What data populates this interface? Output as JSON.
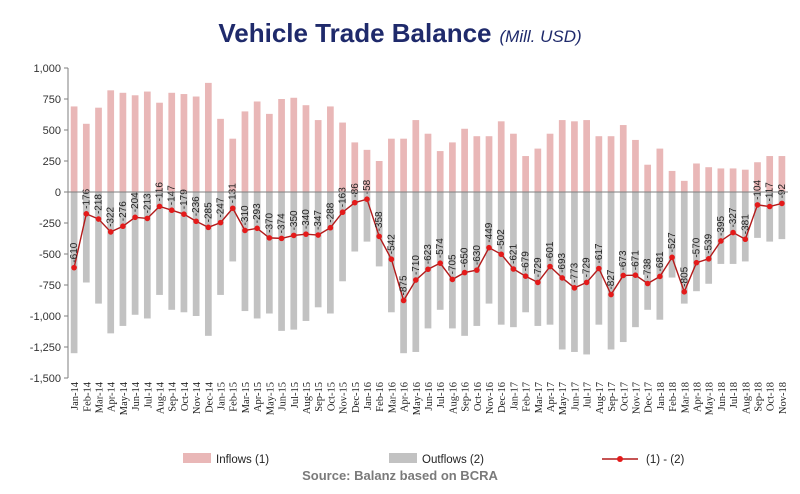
{
  "header": {
    "title": "Vehicle Trade Balance",
    "subtitle": "(Mill. USD)"
  },
  "footer": {
    "source": "Source: Balanz based on BCRA"
  },
  "colors": {
    "inflows": "#e9b7b7",
    "outflows": "#c2c2c2",
    "balance_line": "#b31b1b",
    "balance_marker": "#e41a1a",
    "title": "#1f2a6b"
  },
  "chart_data": {
    "type": "bar",
    "title": "Vehicle Trade Balance",
    "subtitle": "(Mill. USD)",
    "ylim": [
      -1500,
      1000
    ],
    "yticks": [
      1000,
      750,
      500,
      250,
      0,
      -250,
      -500,
      -750,
      -1000,
      -1250,
      -1500
    ],
    "ytick_labels": [
      "1,000",
      "750",
      "500",
      "250",
      "0",
      "-250",
      "-500",
      "-750",
      "-1,000",
      "-1,250",
      "-1,500"
    ],
    "grid": false,
    "legend_position": "bottom",
    "categories": [
      "Jan-14",
      "Feb-14",
      "Mar-14",
      "Apr-14",
      "May-14",
      "Jun-14",
      "Jul-14",
      "Aug-14",
      "Sep-14",
      "Oct-14",
      "Nov-14",
      "Dec-14",
      "Jan-15",
      "Feb-15",
      "Mar-15",
      "Apr-15",
      "May-15",
      "Jun-15",
      "Jul-15",
      "Aug-15",
      "Sep-15",
      "Oct-15",
      "Nov-15",
      "Dec-15",
      "Jan-16",
      "Feb-16",
      "Mar-16",
      "Apr-16",
      "May-16",
      "Jun-16",
      "Jul-16",
      "Aug-16",
      "Sep-16",
      "Oct-16",
      "Nov-16",
      "Dec-16",
      "Jan-17",
      "Feb-17",
      "Mar-17",
      "Apr-17",
      "May-17",
      "Jun-17",
      "Jul-17",
      "Aug-17",
      "Sep-17",
      "Oct-17",
      "Nov-17",
      "Dec-17",
      "Jan-18",
      "Feb-18",
      "Mar-18",
      "Apr-18",
      "May-18",
      "Jun-18",
      "Jul-18",
      "Aug-18",
      "Sep-18",
      "Oct-18",
      "Nov-18"
    ],
    "xtick_labels": [
      "Jan-14",
      "Feb-14",
      "Mar-14",
      "Apr-14",
      "May-14",
      "Jun-14",
      "Jul-14",
      "Aug-14",
      "Sep-14",
      "Oct-14",
      "Nov-14",
      "Dec-14",
      "Jan-15",
      "Feb-15",
      "Mar-15",
      "Apr-15",
      "May-15",
      "Jun-15",
      "Jul-15",
      "Aug-15",
      "Sep-15",
      "Oct-15",
      "Nov-15",
      "Dec-15",
      "Jan-16",
      "Feb-16",
      "Mar-16",
      "Apr-16",
      "May-16",
      "Jun-16",
      "Jul-16",
      "Aug-16",
      "Sep-16",
      "Oct-16",
      "Nov-16",
      "Dec-16",
      "Jan-17",
      "Feb-17",
      "Mar-17",
      "Apr-17",
      "May-17",
      "Jun-17",
      "Jul-17",
      "Aug-17",
      "Sep-17",
      "Oct-17",
      "Nov-17",
      "Dec-17",
      "Jan-18",
      "Feb-18",
      "Mar-18",
      "Apr-18",
      "May-18",
      "Jun-18",
      "Jul-18",
      "Aug-18",
      "Sep-18",
      "Oct-18",
      "Nov-18"
    ],
    "series": [
      {
        "name": "Inflows (1)",
        "type": "bar",
        "values": [
          690,
          550,
          680,
          820,
          800,
          780,
          810,
          720,
          800,
          790,
          770,
          880,
          590,
          430,
          650,
          730,
          630,
          750,
          760,
          700,
          580,
          690,
          560,
          400,
          340,
          250,
          430,
          430,
          580,
          470,
          330,
          400,
          510,
          450,
          450,
          570,
          470,
          290,
          350,
          470,
          580,
          570,
          580,
          450,
          450,
          540,
          420,
          220,
          350,
          170,
          90,
          230,
          200,
          190,
          190,
          180,
          240,
          290,
          290
        ]
      },
      {
        "name": "Outflows (2)",
        "type": "bar",
        "values": [
          -1300,
          -730,
          -900,
          -1140,
          -1080,
          -990,
          -1020,
          -830,
          -950,
          -970,
          -1000,
          -1160,
          -830,
          -560,
          -960,
          -1020,
          -980,
          -1120,
          -1110,
          -1040,
          -930,
          -980,
          -720,
          -480,
          -400,
          -600,
          -970,
          -1300,
          -1290,
          -1100,
          -950,
          -1100,
          -1160,
          -1080,
          -900,
          -1070,
          -1090,
          -970,
          -1080,
          -1070,
          -1270,
          -1290,
          -1310,
          -1070,
          -1270,
          -1210,
          -1090,
          -950,
          -1030,
          -690,
          -900,
          -800,
          -740,
          -580,
          -580,
          -560,
          -370,
          -400,
          -380
        ]
      },
      {
        "name": "(1) - (2)",
        "type": "line",
        "values": [
          -610,
          -176,
          -218,
          -322,
          -276,
          -204,
          -213,
          -116,
          -147,
          -179,
          -236,
          -285,
          -247,
          -131,
          -310,
          -293,
          -370,
          -374,
          -350,
          -340,
          -347,
          -288,
          -163,
          -86,
          -58,
          -358,
          -542,
          -875,
          -710,
          -623,
          -574,
          -705,
          -650,
          -630,
          -449,
          -502,
          -621,
          -679,
          -729,
          -601,
          -693,
          -773,
          -729,
          -617,
          -827,
          -673,
          -671,
          -738,
          -681,
          -527,
          -805,
          -570,
          -539,
          -395,
          -327,
          -381,
          -104,
          -117,
          -92
        ]
      }
    ],
    "data_labels": [
      "-610",
      "-176",
      "-218",
      "-322",
      "-276",
      "-204",
      "-213",
      "-116",
      "-147",
      "-179",
      "-236",
      "-285",
      "-247",
      "-131",
      "-310",
      "-293",
      "-370",
      "-374",
      "-350",
      "-340",
      "-347",
      "-288",
      "-163",
      "-86",
      "-58",
      "-358",
      "-542",
      "-875",
      "-710",
      "-623",
      "-574",
      "-705",
      "-650",
      "-630",
      "-449",
      "-502",
      "-621",
      "-679",
      "-729",
      "-601",
      "-693",
      "-773",
      "-729",
      "-617",
      "-827",
      "-673",
      "-671",
      "-738",
      "-681",
      "-527",
      "-805",
      "-570",
      "-539",
      "-395",
      "-327",
      "-381",
      "-104",
      "-117",
      "-92"
    ],
    "legend": [
      "Inflows (1)",
      "Outflows (2)",
      "(1) - (2)"
    ]
  }
}
